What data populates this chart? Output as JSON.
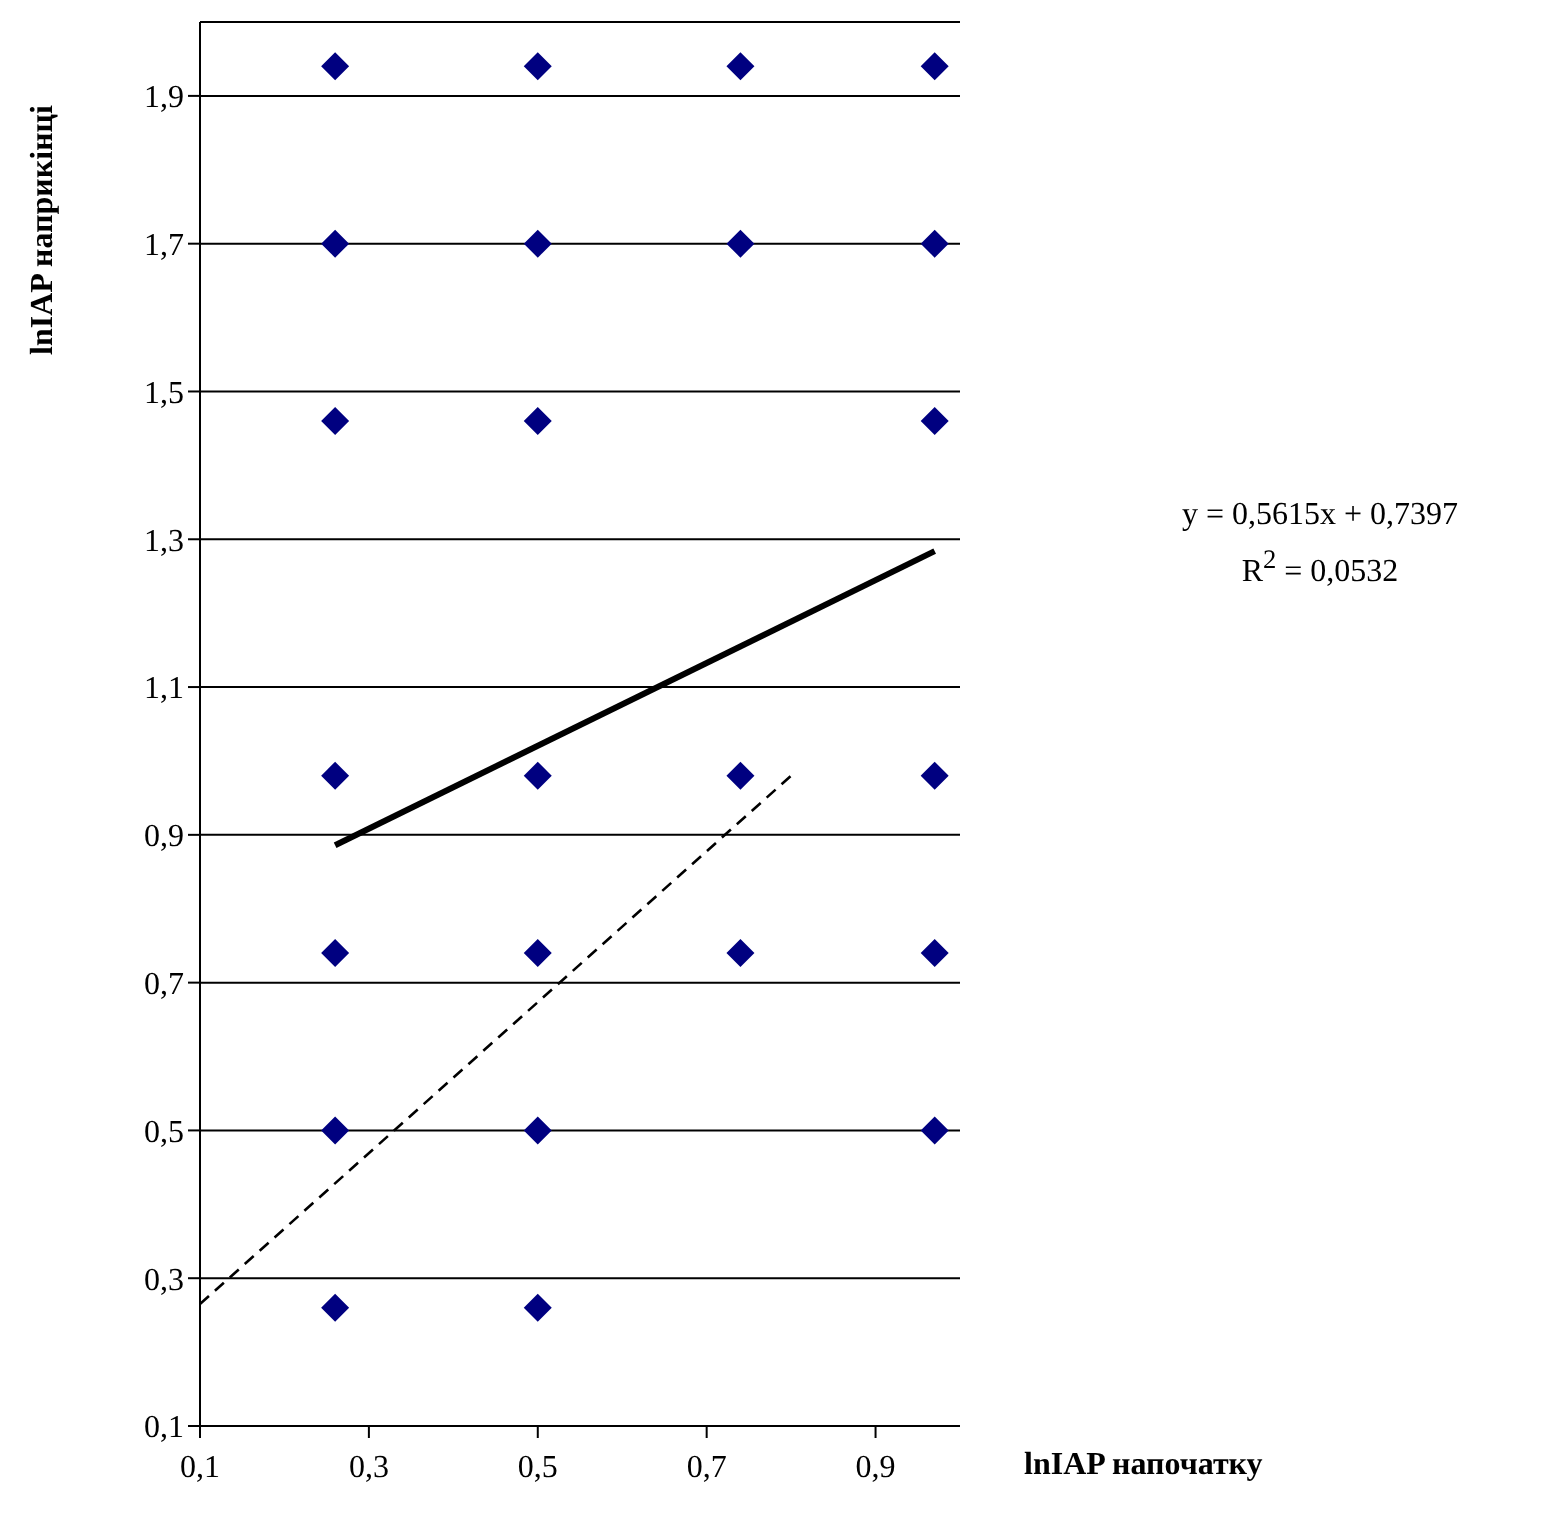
{
  "chart_data": {
    "type": "scatter",
    "xlabel": "lnIAP напочатку",
    "ylabel": "lnIAP наприкінці",
    "annotations": [
      "y = 0,5615x + 0,7397",
      "R$^{2}$ = 0,0532"
    ],
    "xlim": [
      0.1,
      1.0
    ],
    "ylim": [
      0.1,
      2.0
    ],
    "xticks": [
      {
        "value": 0.1,
        "label": "0,1"
      },
      {
        "value": 0.3,
        "label": "0,3"
      },
      {
        "value": 0.5,
        "label": "0,5"
      },
      {
        "value": 0.7,
        "label": "0,7"
      },
      {
        "value": 0.9,
        "label": "0,9"
      }
    ],
    "yticks": [
      {
        "value": 0.1,
        "label": "0,1"
      },
      {
        "value": 0.3,
        "label": "0,3"
      },
      {
        "value": 0.5,
        "label": "0,5"
      },
      {
        "value": 0.7,
        "label": "0,7"
      },
      {
        "value": 0.9,
        "label": "0,9"
      },
      {
        "value": 1.1,
        "label": "1,1"
      },
      {
        "value": 1.3,
        "label": "1,3"
      },
      {
        "value": 1.5,
        "label": "1,5"
      },
      {
        "value": 1.7,
        "label": "1,7"
      },
      {
        "value": 1.9,
        "label": "1,9"
      }
    ],
    "grid": "y",
    "legend": false,
    "series": [
      {
        "color": "#000080",
        "marker": "diamond",
        "x": [
          0.26,
          0.26,
          0.26,
          0.26,
          0.26,
          0.26,
          0.26,
          0.5,
          0.5,
          0.5,
          0.5,
          0.5,
          0.5,
          0.5,
          0.74,
          0.74,
          0.74,
          0.74,
          0.97,
          0.97,
          0.97,
          0.97,
          0.97,
          0.97
        ],
        "values": [
          1.94,
          1.7,
          1.46,
          0.98,
          0.74,
          0.5,
          0.26,
          1.94,
          1.7,
          1.46,
          0.98,
          0.74,
          0.5,
          0.26,
          1.94,
          1.7,
          0.98,
          0.74,
          1.94,
          1.7,
          1.46,
          0.98,
          0.74,
          0.5
        ]
      },
      {
        "type": "line",
        "color": "#000000",
        "line_style": "solid",
        "x": [
          0.26,
          0.97
        ],
        "values": [
          0.886,
          1.284
        ]
      },
      {
        "type": "line",
        "color": "#000000",
        "line_style": "dashed",
        "x": [
          0.1,
          0.8
        ],
        "values": [
          0.265,
          0.98
        ]
      }
    ]
  }
}
